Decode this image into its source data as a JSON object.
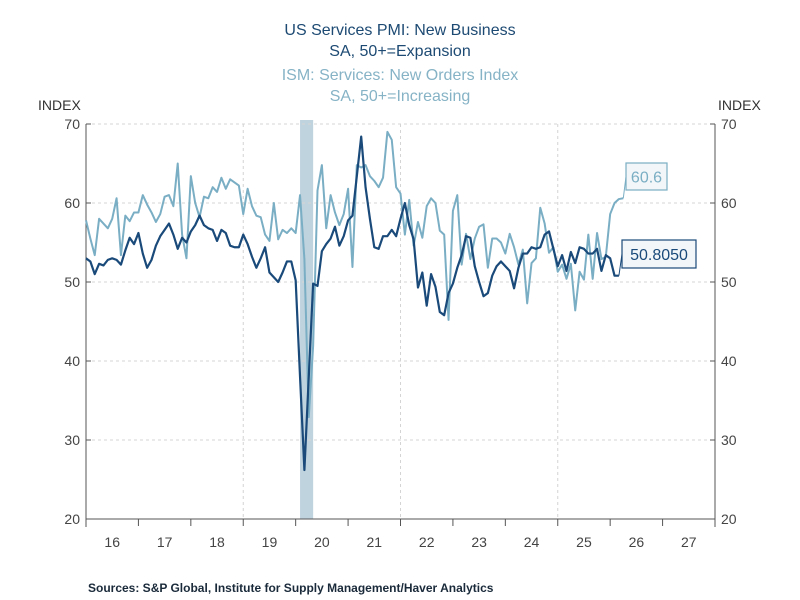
{
  "chart_data": {
    "type": "line",
    "title": [
      "US Services PMI: New Business",
      "SA, 50+=Expansion"
    ],
    "subtitle": [
      "ISM: Services: New Orders Index",
      "SA, 50+=Increasing"
    ],
    "ylabel_left": "INDEX",
    "ylabel_right": "INDEX",
    "ylim": [
      20,
      70
    ],
    "yticks": [
      20,
      30,
      40,
      50,
      60,
      70
    ],
    "xlim": [
      "2016-01",
      "2028-01"
    ],
    "xtick_labels": [
      "16",
      "17",
      "18",
      "19",
      "20",
      "21",
      "22",
      "23",
      "24",
      "25",
      "26",
      "27"
    ],
    "grid": true,
    "frequency": "monthly",
    "start": "2016-01",
    "recession_shading": [
      "2020-02",
      "2020-04"
    ],
    "series": [
      {
        "name": "US Services PMI: New Business",
        "color": "#1a4a7a",
        "last_label": "50.8050",
        "values": [
          53.0,
          52.6,
          51.0,
          52.3,
          52.1,
          52.8,
          53.0,
          52.8,
          52.2,
          54.0,
          55.6,
          54.8,
          56.2,
          53.6,
          51.8,
          52.8,
          54.6,
          55.8,
          56.6,
          57.4,
          56.0,
          54.2,
          55.6,
          55.0,
          56.4,
          57.2,
          58.4,
          57.2,
          56.8,
          56.6,
          55.2,
          56.6,
          56.2,
          54.6,
          54.4,
          54.4,
          56.0,
          54.8,
          53.2,
          51.8,
          53.0,
          54.4,
          51.2,
          50.6,
          50.0,
          51.2,
          52.6,
          52.6,
          50.2,
          38.0,
          26.2,
          38.0,
          49.8,
          49.5,
          53.9,
          54.8,
          55.5,
          57.0,
          54.6,
          55.8,
          57.8,
          58.4,
          63.4,
          68.4,
          62.0,
          58.0,
          54.4,
          54.2,
          55.8,
          55.8,
          56.6,
          55.8,
          58.0,
          60.0,
          57.2,
          55.4,
          49.3,
          51.2,
          47.0,
          51.0,
          49.4,
          46.2,
          45.8,
          48.6,
          49.8,
          51.8,
          53.4,
          55.8,
          55.6,
          52.0,
          50.0,
          48.2,
          48.6,
          50.8,
          52.0,
          52.6,
          52.0,
          51.4,
          49.2,
          51.8,
          53.6,
          53.6,
          54.4,
          54.2,
          54.4,
          56.0,
          56.4,
          54.2,
          52.0,
          53.4,
          51.4,
          53.8,
          52.4,
          54.4,
          54.2,
          53.6,
          53.6,
          54.2,
          51.4,
          53.4,
          53.0,
          50.8,
          50.8
        ]
      },
      {
        "name": "ISM: Services: New Orders Index",
        "color": "#7aaec4",
        "last_label": "60.6",
        "values": [
          57.8,
          55.5,
          53.4,
          58.0,
          57.4,
          56.8,
          58.0,
          60.6,
          53.4,
          58.4,
          57.7,
          58.8,
          58.8,
          61.0,
          59.8,
          58.8,
          57.6,
          58.6,
          60.8,
          61.0,
          59.6,
          65.0,
          56.0,
          53.0,
          63.4,
          60.0,
          58.2,
          60.8,
          60.6,
          62.0,
          61.4,
          63.2,
          61.8,
          63.0,
          62.6,
          62.2,
          58.6,
          61.8,
          59.6,
          58.4,
          58.2,
          56.0,
          55.2,
          60.0,
          55.4,
          56.6,
          56.2,
          56.8,
          56.2,
          61.0,
          52.9,
          32.9,
          41.9,
          61.6,
          64.8,
          56.8,
          61.0,
          58.8,
          57.2,
          58.6,
          61.8,
          51.9,
          64.8,
          64.5,
          64.8,
          63.4,
          62.8,
          62.0,
          63.2,
          69.0,
          68.0,
          62.0,
          61.2,
          56.0,
          60.4,
          54.6,
          57.6,
          55.6,
          59.6,
          60.6,
          60.0,
          56.5,
          56.0,
          45.2,
          59.0,
          61.0,
          52.2,
          56.1,
          52.9,
          55.5,
          57.0,
          57.3,
          51.8,
          55.5,
          55.5,
          55.0,
          53.6,
          56.1,
          54.4,
          52.2,
          54.1,
          47.3,
          52.4,
          53.0,
          59.4,
          57.4,
          53.7,
          54.4,
          51.3,
          52.2,
          50.4,
          52.3,
          46.4,
          51.3,
          50.3,
          56.0,
          50.4,
          56.2,
          52.9,
          53.2,
          58.6,
          60.0,
          60.5,
          60.6
        ]
      }
    ]
  },
  "source": "Sources:  S&P Global, Institute for Supply Management/Haver Analytics"
}
